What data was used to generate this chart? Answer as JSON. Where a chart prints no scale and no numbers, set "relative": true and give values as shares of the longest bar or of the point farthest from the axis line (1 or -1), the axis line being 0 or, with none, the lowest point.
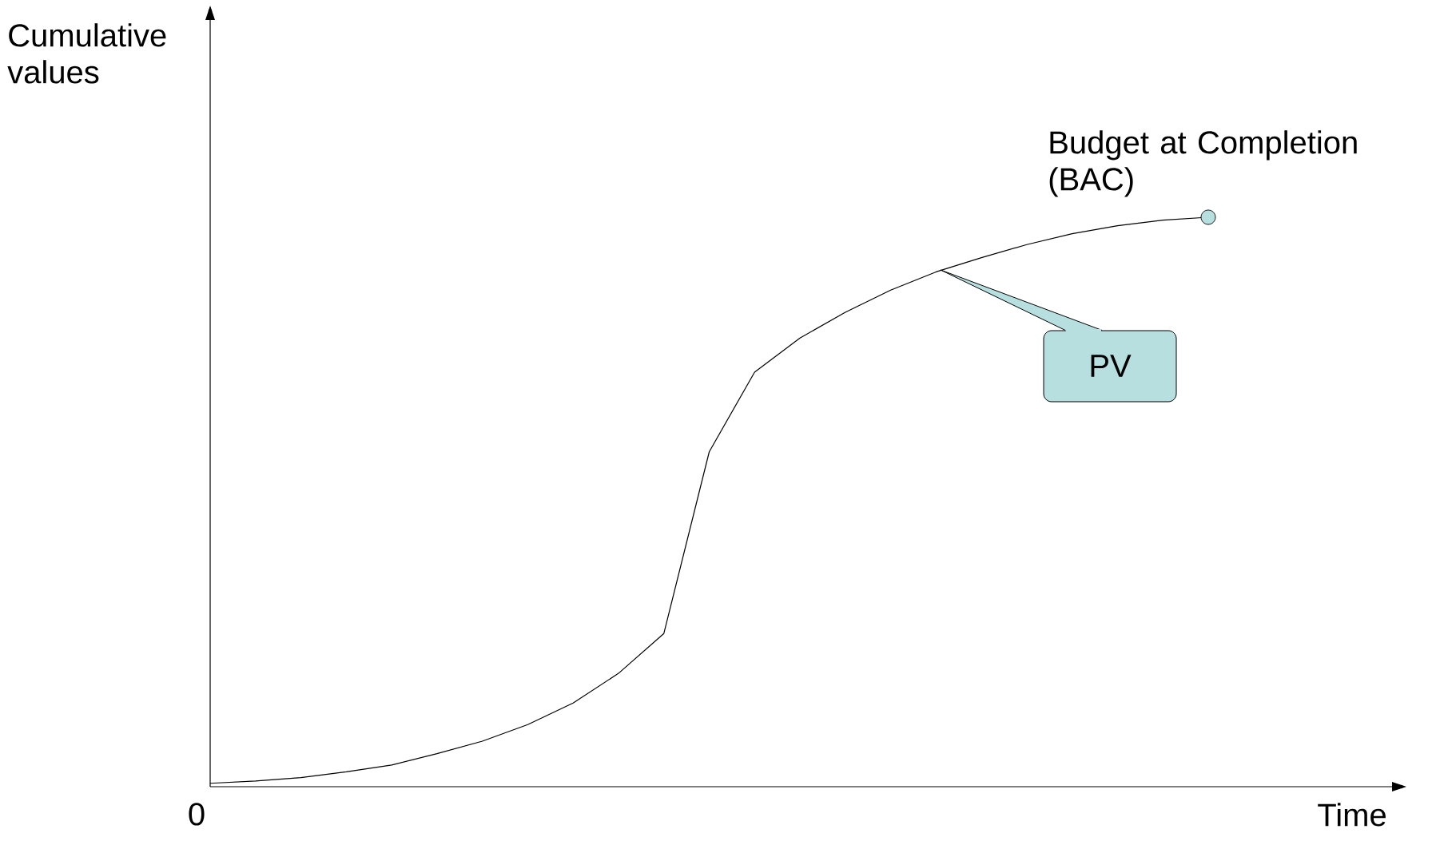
{
  "chart_data": {
    "type": "line",
    "relative": true,
    "xlabel": "Time",
    "ylabel": "Cumulative values",
    "categories": [
      null,
      null,
      null,
      null,
      null,
      null,
      null,
      null,
      null,
      null,
      null,
      null,
      null,
      null,
      null,
      null,
      null,
      null,
      null,
      null,
      null,
      null,
      null
    ],
    "series": [
      {
        "color": "#000000",
        "line_style": "solid",
        "values": [
          0.006,
          0.01,
          0.016,
          0.026,
          0.038,
          0.058,
          0.08,
          0.109,
          0.147,
          0.199,
          0.269,
          0.588,
          0.728,
          0.788,
          0.833,
          0.872,
          0.904,
          0.929,
          0.952,
          0.971,
          0.985,
          0.995,
          1
        ]
      }
    ],
    "annotations": [
      "0",
      "Budget at Completion (BAC)",
      "PV"
    ]
  }
}
